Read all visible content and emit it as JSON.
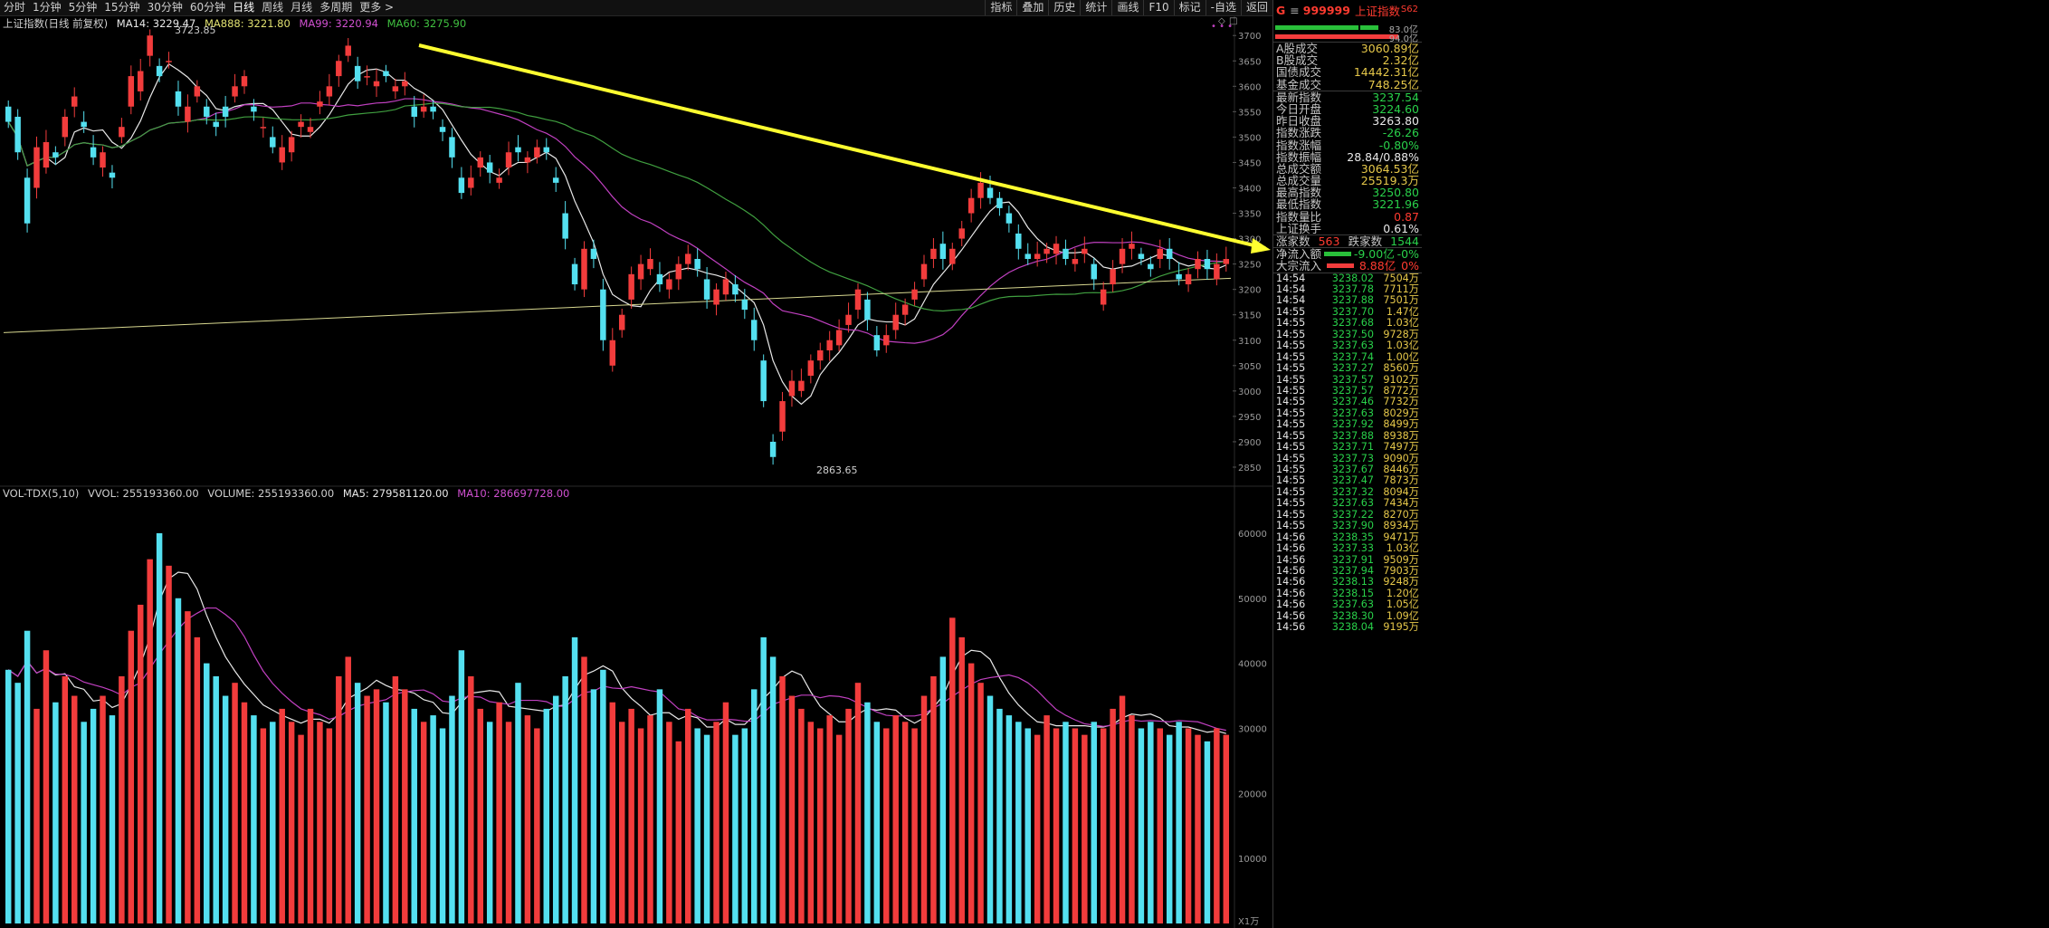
{
  "toolbar": {
    "periods": [
      {
        "label": "分时"
      },
      {
        "label": "1分钟"
      },
      {
        "label": "5分钟"
      },
      {
        "label": "15分钟"
      },
      {
        "label": "30分钟"
      },
      {
        "label": "60分钟"
      },
      {
        "label": "日线",
        "active": true
      },
      {
        "label": "周线"
      },
      {
        "label": "月线"
      },
      {
        "label": "多周期"
      },
      {
        "label": "更多 >"
      }
    ],
    "tools": [
      {
        "label": "指标"
      },
      {
        "label": "叠加"
      },
      {
        "label": "历史"
      },
      {
        "label": "统计"
      },
      {
        "label": "画线"
      },
      {
        "label": "F10"
      },
      {
        "label": "标记"
      },
      {
        "label": "-自选"
      },
      {
        "label": "返回"
      }
    ]
  },
  "chart_info": {
    "title": "上证指数(日线 前复权)",
    "ma14": "MA14: 3229.47",
    "ma888": "MA888: 3221.80",
    "ma99": "MA99: 3220.94",
    "ma60": "MA60: 3275.90"
  },
  "volume_info": {
    "indicator": "VOL-TDX(5,10)",
    "vvol": "VVOL: 255193360.00",
    "volume": "VOLUME: 255193360.00",
    "ma5": "MA5: 279581120.00",
    "ma10": "MA10: 286697728.00"
  },
  "colors": {
    "up": "#f23c3c",
    "down": "#54e0f0",
    "ma14": "#e8e8e8",
    "ma888": "#d8d890",
    "ma99": "#c040c0",
    "ma60": "#40a040",
    "trend": "#ffff30",
    "label_red": "#ff3b30",
    "label_green": "#29d04a",
    "label_yellow": "#e6c84a"
  },
  "chart_data": {
    "type": "candlestick",
    "price_axis": {
      "ticks": [
        2850,
        2900,
        2950,
        3000,
        3050,
        3100,
        3150,
        3200,
        3250,
        3300,
        3350,
        3400,
        3450,
        3500,
        3550,
        3600,
        3650,
        3700
      ],
      "range": [
        2825,
        3720
      ]
    },
    "volume_axis": {
      "ticks": [
        10000,
        20000,
        30000,
        40000,
        50000,
        60000
      ],
      "unit": "X1万",
      "range": [
        0,
        65000
      ]
    },
    "annotations": {
      "high": "3723.85",
      "low": "2863.65"
    },
    "points": [
      [
        3560,
        3530
      ],
      [
        3540,
        3470
      ],
      [
        3420,
        3330
      ],
      [
        3400,
        3480
      ],
      [
        3440,
        3490
      ],
      [
        3470,
        3460
      ],
      [
        3500,
        3540
      ],
      [
        3560,
        3580
      ],
      [
        3530,
        3520
      ],
      [
        3480,
        3460
      ],
      [
        3440,
        3470
      ],
      [
        3430,
        3420
      ],
      [
        3500,
        3520
      ],
      [
        3560,
        3620
      ],
      [
        3590,
        3630
      ],
      [
        3660,
        3700
      ],
      [
        3640,
        3620
      ],
      [
        3650,
        3650
      ],
      [
        3590,
        3560
      ],
      [
        3530,
        3560
      ],
      [
        3580,
        3600
      ],
      [
        3560,
        3540
      ],
      [
        3530,
        3520
      ],
      [
        3560,
        3540
      ],
      [
        3580,
        3600
      ],
      [
        3600,
        3620
      ],
      [
        3560,
        3550
      ],
      [
        3520,
        3520
      ],
      [
        3500,
        3480
      ],
      [
        3450,
        3480
      ],
      [
        3470,
        3500
      ],
      [
        3520,
        3530
      ],
      [
        3510,
        3520
      ],
      [
        3560,
        3570
      ],
      [
        3580,
        3600
      ],
      [
        3620,
        3650
      ],
      [
        3660,
        3680
      ],
      [
        3640,
        3610
      ],
      [
        3620,
        3620
      ],
      [
        3600,
        3610
      ],
      [
        3630,
        3620
      ],
      [
        3590,
        3600
      ],
      [
        3600,
        3610
      ],
      [
        3560,
        3540
      ],
      [
        3550,
        3560
      ],
      [
        3560,
        3550
      ],
      [
        3520,
        3510
      ],
      [
        3500,
        3460
      ],
      [
        3420,
        3390
      ],
      [
        3400,
        3420
      ],
      [
        3440,
        3460
      ],
      [
        3450,
        3430
      ],
      [
        3410,
        3420
      ],
      [
        3440,
        3470
      ],
      [
        3480,
        3470
      ],
      [
        3450,
        3460
      ],
      [
        3460,
        3480
      ],
      [
        3480,
        3470
      ],
      [
        3420,
        3410
      ],
      [
        3350,
        3300
      ],
      [
        3250,
        3210
      ],
      [
        3200,
        3280
      ],
      [
        3280,
        3260
      ],
      [
        3200,
        3100
      ],
      [
        3050,
        3100
      ],
      [
        3120,
        3150
      ],
      [
        3180,
        3230
      ],
      [
        3220,
        3250
      ],
      [
        3240,
        3260
      ],
      [
        3230,
        3210
      ],
      [
        3200,
        3220
      ],
      [
        3220,
        3250
      ],
      [
        3250,
        3270
      ],
      [
        3260,
        3240
      ],
      [
        3220,
        3180
      ],
      [
        3170,
        3200
      ],
      [
        3190,
        3220
      ],
      [
        3210,
        3190
      ],
      [
        3180,
        3160
      ],
      [
        3140,
        3100
      ],
      [
        3060,
        2980
      ],
      [
        2900,
        2870
      ],
      [
        2920,
        2980
      ],
      [
        2990,
        3020
      ],
      [
        3000,
        3020
      ],
      [
        3030,
        3060
      ],
      [
        3060,
        3080
      ],
      [
        3080,
        3100
      ],
      [
        3090,
        3120
      ],
      [
        3130,
        3150
      ],
      [
        3160,
        3200
      ],
      [
        3180,
        3140
      ],
      [
        3110,
        3080
      ],
      [
        3090,
        3110
      ],
      [
        3120,
        3150
      ],
      [
        3150,
        3170
      ],
      [
        3180,
        3200
      ],
      [
        3220,
        3250
      ],
      [
        3260,
        3280
      ],
      [
        3290,
        3260
      ],
      [
        3250,
        3280
      ],
      [
        3300,
        3320
      ],
      [
        3350,
        3380
      ],
      [
        3380,
        3410
      ],
      [
        3400,
        3380
      ],
      [
        3380,
        3360
      ],
      [
        3350,
        3330
      ],
      [
        3310,
        3280
      ],
      [
        3270,
        3260
      ],
      [
        3260,
        3270
      ],
      [
        3270,
        3280
      ],
      [
        3270,
        3290
      ],
      [
        3280,
        3260
      ],
      [
        3250,
        3260
      ],
      [
        3270,
        3280
      ],
      [
        3250,
        3220
      ],
      [
        3170,
        3200
      ],
      [
        3210,
        3240
      ],
      [
        3250,
        3280
      ],
      [
        3280,
        3290
      ],
      [
        3270,
        3260
      ],
      [
        3250,
        3240
      ],
      [
        3260,
        3280
      ],
      [
        3280,
        3260
      ],
      [
        3230,
        3220
      ],
      [
        3210,
        3230
      ],
      [
        3240,
        3260
      ],
      [
        3260,
        3240
      ],
      [
        3220,
        3250
      ],
      [
        3250,
        3260
      ]
    ],
    "volumes": [
      39000,
      37000,
      45000,
      33000,
      42000,
      34000,
      38000,
      35000,
      31000,
      33000,
      35000,
      32000,
      38000,
      45000,
      49000,
      56000,
      60000,
      55000,
      50000,
      48000,
      44000,
      40000,
      38000,
      35000,
      37000,
      34000,
      32000,
      30000,
      31000,
      33000,
      31000,
      29000,
      33000,
      31000,
      30000,
      38000,
      41000,
      37000,
      35000,
      36000,
      34000,
      38000,
      36000,
      33000,
      31000,
      32000,
      30000,
      35000,
      42000,
      38000,
      33000,
      31000,
      34000,
      31000,
      37000,
      32000,
      30000,
      33000,
      35000,
      38000,
      44000,
      41000,
      36000,
      39000,
      34000,
      31000,
      33000,
      30000,
      32000,
      36000,
      31000,
      28000,
      33000,
      30000,
      29000,
      31000,
      34000,
      29000,
      30000,
      36000,
      44000,
      41000,
      38000,
      35000,
      33000,
      31000,
      30000,
      32000,
      29000,
      33000,
      37000,
      34000,
      31000,
      30000,
      32000,
      31000,
      30000,
      35000,
      38000,
      41000,
      47000,
      44000,
      40000,
      37000,
      35000,
      33000,
      32000,
      31000,
      30000,
      29000,
      32000,
      30000,
      31000,
      30000,
      29000,
      31000,
      30000,
      33000,
      35000,
      32000,
      30000,
      31000,
      30000,
      29000,
      31000,
      30000,
      29000,
      28000,
      30000,
      29000
    ]
  },
  "right_panel": {
    "header": {
      "g": "G",
      "menu": "≡",
      "code": "999999",
      "name": "上证指数",
      "badge": "S62"
    },
    "bars": [
      {
        "value": "83.0亿"
      },
      {
        "value": "94.0亿"
      }
    ],
    "turnover": [
      {
        "k": "A股成交",
        "v": "3060.89亿"
      },
      {
        "k": "B股成交",
        "v": "2.32亿"
      },
      {
        "k": "国债成交",
        "v": "14442.31亿"
      },
      {
        "k": "基金成交",
        "v": "748.25亿"
      }
    ],
    "quote": [
      {
        "k": "最新指数",
        "v": "3237.54",
        "c": "green"
      },
      {
        "k": "今日开盘",
        "v": "3224.60",
        "c": "green"
      },
      {
        "k": "昨日收盘",
        "v": "3263.80",
        "c": "white"
      },
      {
        "k": "指数涨跌",
        "v": "-26.26",
        "c": "green"
      },
      {
        "k": "指数涨幅",
        "v": "-0.80%",
        "c": "green"
      },
      {
        "k": "指数振幅",
        "v": "28.84/0.88%",
        "c": "white"
      },
      {
        "k": "总成交额",
        "v": "3064.53亿",
        "c": "yellow"
      },
      {
        "k": "总成交量",
        "v": "25519.3万",
        "c": "yellow"
      },
      {
        "k": "最高指数",
        "v": "3250.80",
        "c": "green"
      },
      {
        "k": "最低指数",
        "v": "3221.96",
        "c": "green"
      },
      {
        "k": "指数量比",
        "v": "0.87",
        "c": "red"
      },
      {
        "k": "上证换手",
        "v": "0.61%",
        "c": "white"
      }
    ],
    "breadth": {
      "up_label": "涨家数",
      "up_value": "563",
      "down_label": "跌家数",
      "down_value": "1544"
    },
    "flows": [
      {
        "k": "净流入额",
        "v": "-9.00亿",
        "p": "-0%",
        "c": "green"
      },
      {
        "k": "大宗流入",
        "v": "8.88亿",
        "p": "0%",
        "c": "red"
      }
    ],
    "ticks": [
      {
        "t": "14:54",
        "p": "3238.02",
        "v": "7504万"
      },
      {
        "t": "14:54",
        "p": "3237.78",
        "v": "7711万"
      },
      {
        "t": "14:54",
        "p": "3237.88",
        "v": "7501万"
      },
      {
        "t": "14:55",
        "p": "3237.70",
        "v": "1.47亿"
      },
      {
        "t": "14:55",
        "p": "3237.68",
        "v": "1.03亿"
      },
      {
        "t": "14:55",
        "p": "3237.50",
        "v": "9728万"
      },
      {
        "t": "14:55",
        "p": "3237.63",
        "v": "1.03亿"
      },
      {
        "t": "14:55",
        "p": "3237.74",
        "v": "1.00亿"
      },
      {
        "t": "14:55",
        "p": "3237.27",
        "v": "8560万"
      },
      {
        "t": "14:55",
        "p": "3237.57",
        "v": "9102万"
      },
      {
        "t": "14:55",
        "p": "3237.57",
        "v": "8772万"
      },
      {
        "t": "14:55",
        "p": "3237.46",
        "v": "7732万"
      },
      {
        "t": "14:55",
        "p": "3237.63",
        "v": "8029万"
      },
      {
        "t": "14:55",
        "p": "3237.92",
        "v": "8499万"
      },
      {
        "t": "14:55",
        "p": "3237.88",
        "v": "8938万"
      },
      {
        "t": "14:55",
        "p": "3237.71",
        "v": "7497万"
      },
      {
        "t": "14:55",
        "p": "3237.73",
        "v": "9090万"
      },
      {
        "t": "14:55",
        "p": "3237.67",
        "v": "8446万"
      },
      {
        "t": "14:55",
        "p": "3237.47",
        "v": "7873万"
      },
      {
        "t": "14:55",
        "p": "3237.32",
        "v": "8094万"
      },
      {
        "t": "14:55",
        "p": "3237.63",
        "v": "7434万"
      },
      {
        "t": "14:55",
        "p": "3237.22",
        "v": "8270万"
      },
      {
        "t": "14:55",
        "p": "3237.90",
        "v": "8934万"
      },
      {
        "t": "14:56",
        "p": "3238.35",
        "v": "9471万"
      },
      {
        "t": "14:56",
        "p": "3237.33",
        "v": "1.03亿"
      },
      {
        "t": "14:56",
        "p": "3237.91",
        "v": "9509万"
      },
      {
        "t": "14:56",
        "p": "3237.94",
        "v": "7903万"
      },
      {
        "t": "14:56",
        "p": "3238.13",
        "v": "9248万"
      },
      {
        "t": "14:56",
        "p": "3238.15",
        "v": "1.20亿"
      },
      {
        "t": "14:56",
        "p": "3237.63",
        "v": "1.05亿"
      },
      {
        "t": "14:56",
        "p": "3238.30",
        "v": "1.09亿"
      },
      {
        "t": "14:56",
        "p": "3238.04",
        "v": "9195万"
      }
    ]
  }
}
